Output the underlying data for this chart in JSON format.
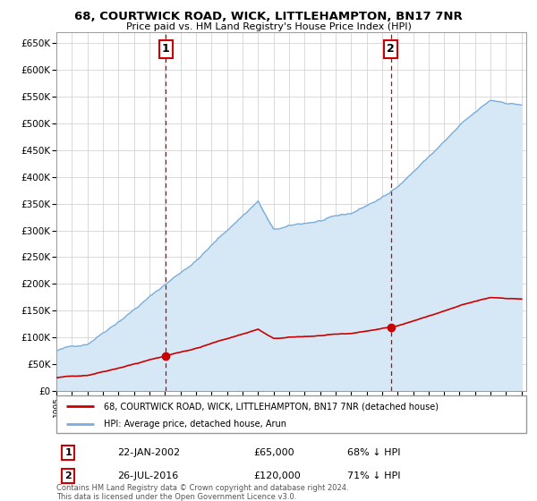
{
  "title": "68, COURTWICK ROAD, WICK, LITTLEHAMPTON, BN17 7NR",
  "subtitle": "Price paid vs. HM Land Registry's House Price Index (HPI)",
  "ylim": [
    0,
    670000
  ],
  "yticks": [
    0,
    50000,
    100000,
    150000,
    200000,
    250000,
    300000,
    350000,
    400000,
    450000,
    500000,
    550000,
    600000,
    650000
  ],
  "ytick_labels": [
    "£0",
    "£50K",
    "£100K",
    "£150K",
    "£200K",
    "£250K",
    "£300K",
    "£350K",
    "£400K",
    "£450K",
    "£500K",
    "£550K",
    "£600K",
    "£650K"
  ],
  "hpi_color": "#7aaddb",
  "hpi_fill_color": "#d6e8f5",
  "price_color": "#cc0000",
  "marker1_date": 2002.06,
  "marker1_price": 65000,
  "marker2_date": 2016.56,
  "marker2_price": 120000,
  "legend_line1": "68, COURTWICK ROAD, WICK, LITTLEHAMPTON, BN17 7NR (detached house)",
  "legend_line2": "HPI: Average price, detached house, Arun",
  "annotation1_date": "22-JAN-2002",
  "annotation1_price": "£65,000",
  "annotation1_pct": "68% ↓ HPI",
  "annotation2_date": "26-JUL-2016",
  "annotation2_price": "£120,000",
  "annotation2_pct": "71% ↓ HPI",
  "footer": "Contains HM Land Registry data © Crown copyright and database right 2024.\nThis data is licensed under the Open Government Licence v3.0.",
  "background_color": "#ffffff",
  "grid_color": "#cccccc"
}
